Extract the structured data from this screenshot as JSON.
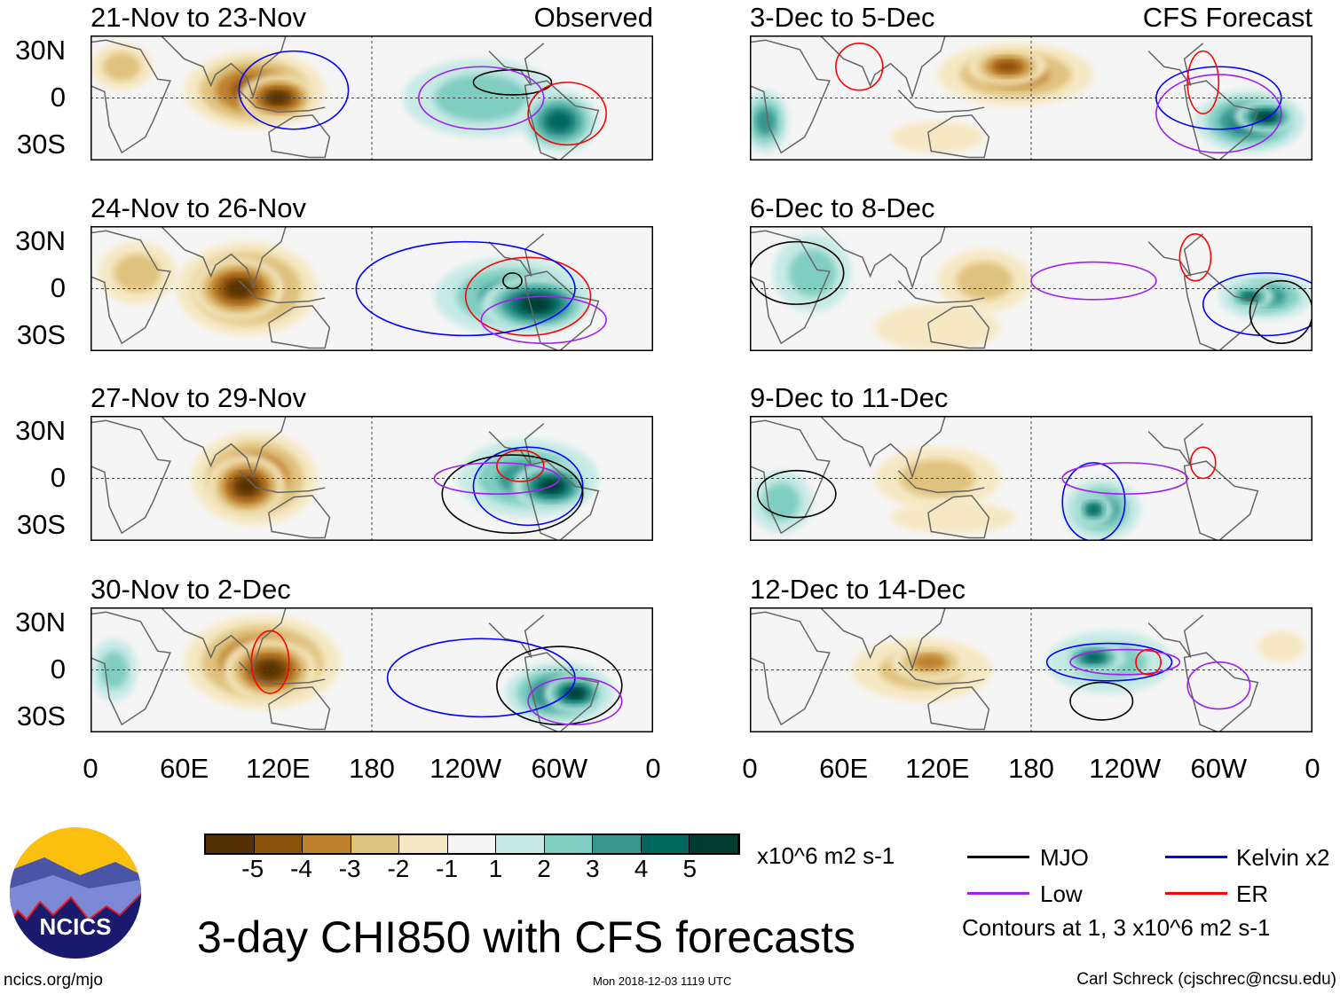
{
  "title": "3-day CHI850 with CFS forecasts",
  "lat_labels": [
    "30N",
    "0",
    "30S"
  ],
  "lon_labels": [
    "0",
    "60E",
    "120E",
    "180",
    "120W",
    "60W",
    "0"
  ],
  "colorbar": {
    "units": "x10^6 m2 s-1",
    "labels": [
      "-5",
      "-4",
      "-3",
      "-2",
      "-1",
      "1",
      "2",
      "3",
      "4",
      "5"
    ],
    "colors": [
      "#543005",
      "#8c510a",
      "#bf812d",
      "#dfc27d",
      "#f6e8c3",
      "#f5f5f5",
      "#c7eae5",
      "#80cdc1",
      "#35978f",
      "#01665e",
      "#003c30"
    ]
  },
  "legend": {
    "items": [
      {
        "label": "MJO",
        "color": "#000000"
      },
      {
        "label": "Kelvin x2",
        "color": "#0000ff"
      },
      {
        "label": "Low",
        "color": "#a020f0"
      },
      {
        "label": "ER",
        "color": "#ff0000"
      }
    ],
    "note": "Contours at 1, 3 x10^6 m2 s-1"
  },
  "footer": {
    "site": "ncics.org/mjo",
    "timestamp": "Mon 2018-12-03 1119 UTC",
    "author": "Carl Schreck (cjschrec@ncsu.edu)"
  },
  "logo_text": "NCICS",
  "panels": [
    {
      "title": "21-Nov to 23-Nov",
      "tag": "Observed",
      "shade": [
        [
          105,
          5,
          45,
          25,
          -4
        ],
        [
          120,
          0,
          25,
          15,
          -5
        ],
        [
          20,
          20,
          20,
          15,
          -2
        ],
        [
          250,
          0,
          50,
          25,
          2
        ],
        [
          300,
          -15,
          25,
          20,
          4
        ]
      ],
      "contours": [
        [
          270,
          10,
          25,
          8,
          "mjo"
        ],
        [
          130,
          5,
          35,
          25,
          "kelvin"
        ],
        [
          305,
          -10,
          25,
          20,
          "er"
        ],
        [
          250,
          0,
          40,
          20,
          "low"
        ]
      ]
    },
    {
      "title": "24-Nov to 26-Nov",
      "tag": "",
      "shade": [
        [
          100,
          0,
          45,
          30,
          -4
        ],
        [
          95,
          0,
          30,
          20,
          -5
        ],
        [
          30,
          10,
          25,
          20,
          -2
        ],
        [
          270,
          -5,
          50,
          25,
          3
        ],
        [
          285,
          -10,
          35,
          18,
          5
        ]
      ],
      "contours": [
        [
          270,
          5,
          6,
          5,
          "mjo"
        ],
        [
          280,
          -5,
          40,
          25,
          "er"
        ],
        [
          240,
          0,
          70,
          30,
          "kelvin"
        ],
        [
          290,
          -20,
          40,
          15,
          "low"
        ]
      ]
    },
    {
      "title": "27-Nov to 29-Nov",
      "tag": "",
      "shade": [
        [
          105,
          0,
          40,
          30,
          -4
        ],
        [
          100,
          -5,
          25,
          20,
          -5
        ],
        [
          280,
          0,
          45,
          25,
          3
        ],
        [
          295,
          -5,
          25,
          15,
          5
        ]
      ],
      "contours": [
        [
          280,
          -5,
          35,
          25,
          "kelvin"
        ],
        [
          275,
          8,
          15,
          10,
          "er"
        ],
        [
          270,
          -10,
          45,
          25,
          "mjo"
        ],
        [
          260,
          0,
          40,
          10,
          "low"
        ]
      ]
    },
    {
      "title": "30-Nov to 2-Dec",
      "tag": "",
      "shade": [
        [
          110,
          5,
          50,
          30,
          -4
        ],
        [
          115,
          0,
          30,
          20,
          -5
        ],
        [
          15,
          0,
          15,
          20,
          2
        ],
        [
          300,
          -15,
          35,
          20,
          4
        ],
        [
          310,
          -15,
          20,
          12,
          5
        ]
      ],
      "contours": [
        [
          115,
          5,
          12,
          20,
          "er"
        ],
        [
          300,
          -10,
          40,
          25,
          "mjo"
        ],
        [
          250,
          -5,
          60,
          25,
          "kelvin"
        ],
        [
          310,
          -20,
          30,
          15,
          "low"
        ]
      ]
    },
    {
      "title": "3-Dec to 5-Dec",
      "tag": "CFS Forecast",
      "shade": [
        [
          170,
          15,
          50,
          20,
          -3
        ],
        [
          165,
          20,
          25,
          12,
          -4
        ],
        [
          120,
          -25,
          30,
          10,
          -1
        ],
        [
          320,
          -15,
          35,
          20,
          4
        ],
        [
          330,
          -12,
          20,
          10,
          5
        ],
        [
          10,
          -15,
          15,
          20,
          3
        ]
      ],
      "contours": [
        [
          300,
          0,
          40,
          20,
          "kelvin"
        ],
        [
          290,
          10,
          10,
          20,
          "er"
        ],
        [
          300,
          -10,
          40,
          25,
          "low"
        ],
        [
          70,
          20,
          15,
          15,
          "er"
        ]
      ]
    },
    {
      "title": "6-Dec to 8-Dec",
      "tag": "",
      "shade": [
        [
          150,
          5,
          30,
          20,
          -2
        ],
        [
          120,
          -25,
          40,
          15,
          -1
        ],
        [
          330,
          -5,
          30,
          15,
          3
        ],
        [
          320,
          -5,
          15,
          8,
          4
        ],
        [
          40,
          10,
          25,
          25,
          2
        ]
      ],
      "contours": [
        [
          30,
          10,
          30,
          20,
          "mjo"
        ],
        [
          330,
          -10,
          40,
          20,
          "kelvin"
        ],
        [
          220,
          5,
          40,
          12,
          "low"
        ],
        [
          285,
          20,
          10,
          15,
          "er"
        ],
        [
          340,
          -15,
          20,
          20,
          "mjo"
        ]
      ]
    },
    {
      "title": "9-Dec to 11-Dec",
      "tag": "",
      "shade": [
        [
          120,
          0,
          40,
          20,
          -2
        ],
        [
          130,
          -25,
          40,
          10,
          -1
        ],
        [
          225,
          -20,
          25,
          20,
          3
        ],
        [
          220,
          -20,
          12,
          10,
          4
        ],
        [
          20,
          -15,
          20,
          20,
          2
        ]
      ],
      "contours": [
        [
          220,
          -15,
          20,
          25,
          "kelvin"
        ],
        [
          240,
          0,
          40,
          10,
          "low"
        ],
        [
          30,
          -10,
          25,
          15,
          "mjo"
        ],
        [
          290,
          10,
          8,
          10,
          "er"
        ]
      ]
    },
    {
      "title": "12-Dec to 14-Dec",
      "tag": "",
      "shade": [
        [
          110,
          0,
          45,
          20,
          -2
        ],
        [
          115,
          5,
          25,
          12,
          -3
        ],
        [
          230,
          5,
          40,
          20,
          2
        ],
        [
          220,
          8,
          20,
          10,
          4
        ],
        [
          340,
          15,
          15,
          10,
          -1
        ]
      ],
      "contours": [
        [
          225,
          -20,
          20,
          12,
          "mjo"
        ],
        [
          230,
          5,
          40,
          12,
          "kelvin"
        ],
        [
          240,
          5,
          35,
          8,
          "low"
        ],
        [
          255,
          5,
          8,
          8,
          "er"
        ],
        [
          300,
          -10,
          20,
          15,
          "low"
        ]
      ]
    }
  ]
}
